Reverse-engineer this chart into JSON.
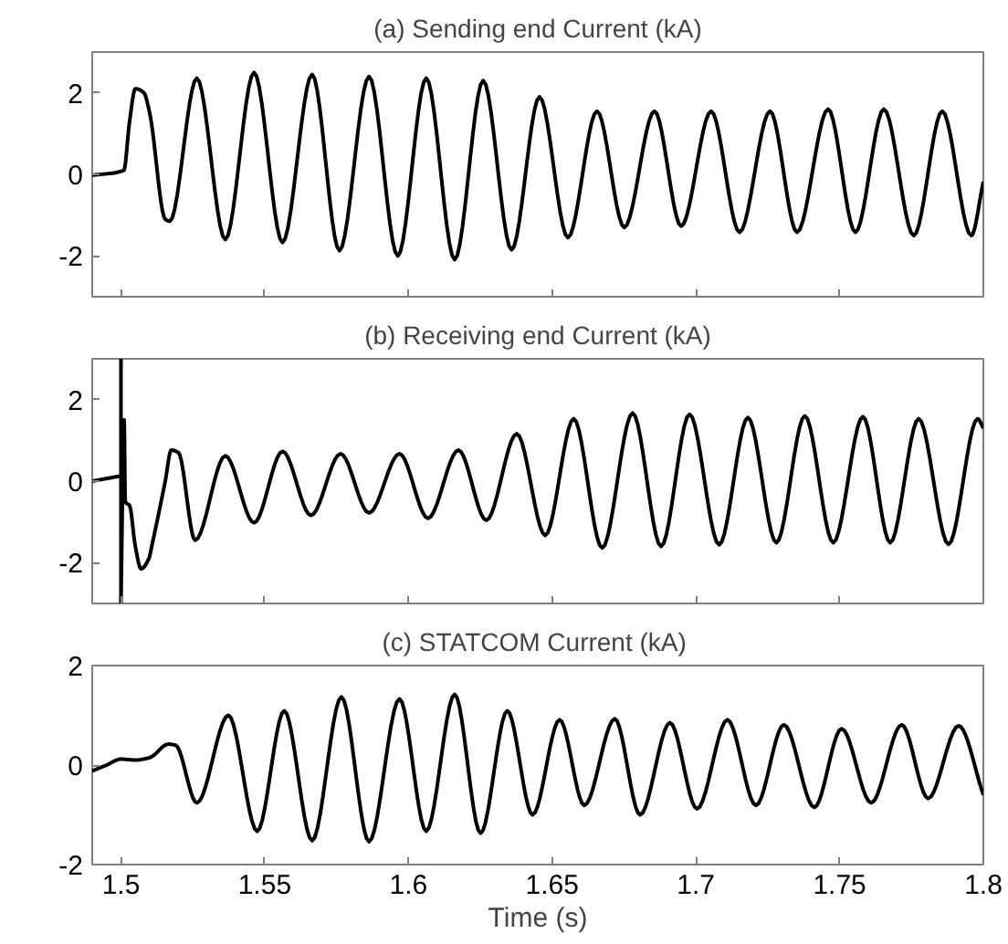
{
  "chart_data": [
    {
      "type": "line",
      "title": "(a) Sending end Current (kA)",
      "xlim": [
        1.49,
        1.8
      ],
      "ylim": [
        -3,
        3
      ],
      "xticks": [
        1.5,
        1.55,
        1.6,
        1.65,
        1.7,
        1.75,
        1.8
      ],
      "yticks": [
        -2,
        0,
        2
      ],
      "tick_labels": "y",
      "grid": false,
      "line_style": "solid",
      "marker": "none",
      "series": [
        {
          "color": "#000000",
          "x": [
            1.49,
            1.501,
            1.503,
            1.505,
            1.508,
            1.51,
            1.5154,
            1.517,
            1.5264,
            1.5363,
            1.5463,
            1.5562,
            1.5665,
            1.576,
            1.5863,
            1.5963,
            1.6062,
            1.6161,
            1.626,
            1.6359,
            1.6456,
            1.6555,
            1.6656,
            1.6751,
            1.6856,
            1.6949,
            1.7053,
            1.7152,
            1.7258,
            1.7352,
            1.746,
            1.7555,
            1.7654,
            1.7758,
            1.7857,
            1.7958,
            1.8
          ],
          "values": [
            -0.02,
            0.1,
            1.3,
            2.1,
            2.0,
            1.5,
            -1.1,
            -1.15,
            2.36,
            -1.6,
            2.5,
            -1.67,
            2.45,
            -1.87,
            2.4,
            -2.0,
            2.36,
            -2.09,
            2.3,
            -1.85,
            1.9,
            -1.55,
            1.55,
            -1.3,
            1.55,
            -1.27,
            1.55,
            -1.42,
            1.55,
            -1.42,
            1.6,
            -1.42,
            1.6,
            -1.5,
            1.55,
            -1.5,
            -0.18
          ]
        }
      ]
    },
    {
      "type": "line",
      "title": "(b) Receiving end Current (kA)",
      "xlim": [
        1.49,
        1.8
      ],
      "ylim": [
        -3,
        3
      ],
      "xticks": [
        1.5,
        1.55,
        1.6,
        1.65,
        1.7,
        1.75,
        1.8
      ],
      "yticks": [
        -2,
        0,
        2
      ],
      "tick_labels": "y",
      "grid": false,
      "line_style": "solid",
      "marker": "none",
      "series": [
        {
          "color": "#000000",
          "x": [
            1.49,
            1.5,
            1.5,
            1.5,
            1.5011,
            1.5015,
            1.503,
            1.505,
            1.507,
            1.5097,
            1.511,
            1.5154,
            1.5175,
            1.52,
            1.5258,
            1.5363,
            1.5463,
            1.5562,
            1.5661,
            1.5764,
            1.5863,
            1.5969,
            1.6068,
            1.6174,
            1.6271,
            1.6377,
            1.6476,
            1.6575,
            1.6674,
            1.678,
            1.6879,
            1.6978,
            1.7081,
            1.7181,
            1.728,
            1.7379,
            1.7478,
            1.7581,
            1.7676,
            1.7775,
            1.7879,
            1.798,
            1.8
          ],
          "values": [
            0.0,
            0.13,
            3,
            -3,
            1.5,
            -0.5,
            -0.6,
            -1.6,
            -2.15,
            -1.9,
            -1.5,
            0.0,
            0.76,
            0.7,
            -1.45,
            0.62,
            -1.02,
            0.73,
            -0.84,
            0.67,
            -0.78,
            0.67,
            -0.91,
            0.76,
            -0.96,
            1.16,
            -1.33,
            1.53,
            -1.64,
            1.67,
            -1.6,
            1.64,
            -1.56,
            1.56,
            -1.51,
            1.6,
            -1.51,
            1.58,
            -1.51,
            1.53,
            -1.55,
            1.53,
            1.3
          ]
        }
      ]
    },
    {
      "type": "line",
      "title": "(c) STATCOM Current  (kA)",
      "xlabel": "Time (s)",
      "xlim": [
        1.49,
        1.8
      ],
      "ylim": [
        -2,
        2
      ],
      "xticks": [
        1.5,
        1.55,
        1.6,
        1.65,
        1.7,
        1.75,
        1.8
      ],
      "yticks": [
        -2,
        0,
        2
      ],
      "grid": false,
      "line_style": "solid",
      "marker": "none",
      "series": [
        {
          "color": "#000000",
          "x": [
            1.49,
            1.495,
            1.5,
            1.505,
            1.51,
            1.5165,
            1.519,
            1.5264,
            1.5374,
            1.5474,
            1.5568,
            1.5665,
            1.5767,
            1.5863,
            1.5969,
            1.6062,
            1.6161,
            1.6251,
            1.6344,
            1.6432,
            1.6526,
            1.6612,
            1.6718,
            1.6806,
            1.691,
            1.7004,
            1.711,
            1.7209,
            1.7306,
            1.7412,
            1.7507,
            1.761,
            1.7716,
            1.7808,
            1.7914,
            1.8
          ],
          "values": [
            -0.12,
            0.0,
            0.12,
            0.1,
            0.15,
            0.42,
            0.4,
            -0.76,
            1.0,
            -1.33,
            1.09,
            -1.52,
            1.37,
            -1.54,
            1.33,
            -1.33,
            1.42,
            -1.37,
            1.09,
            -1.0,
            0.91,
            -0.81,
            0.93,
            -1.0,
            0.85,
            -0.88,
            0.91,
            -0.81,
            0.81,
            -0.85,
            0.73,
            -0.76,
            0.81,
            -0.67,
            0.79,
            -0.6
          ]
        }
      ]
    }
  ]
}
